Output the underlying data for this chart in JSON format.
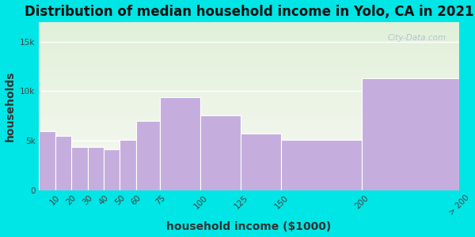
{
  "title": "Distribution of median household income in Yolo, CA in 2021",
  "xlabel": "household income ($1000)",
  "ylabel": "households",
  "background_color": "#00e5e5",
  "plot_bg_top": "#e0f0d8",
  "plot_bg_bottom": "#f8f8f4",
  "bar_color": "#c5aedd",
  "bar_edge_color": "#ffffff",
  "bin_edges": [
    0,
    10,
    20,
    30,
    40,
    50,
    60,
    75,
    100,
    125,
    150,
    200,
    260
  ],
  "values": [
    6000,
    5500,
    4400,
    4400,
    4100,
    5100,
    7000,
    9400,
    7600,
    5700,
    5100,
    11300
  ],
  "xtick_positions": [
    10,
    20,
    30,
    40,
    50,
    60,
    75,
    100,
    125,
    150,
    200,
    260
  ],
  "xtick_labels": [
    "10",
    "20",
    "30",
    "40",
    "50",
    "60",
    "75",
    "100",
    "125",
    "150",
    "200",
    "> 200"
  ],
  "ylim": [
    0,
    17000
  ],
  "yticks": [
    0,
    5000,
    10000,
    15000
  ],
  "ytick_labels": [
    "0",
    "5k",
    "10k",
    "15k"
  ],
  "title_fontsize": 12,
  "axis_label_fontsize": 10,
  "tick_fontsize": 7.5,
  "watermark_text": "City-Data.com"
}
